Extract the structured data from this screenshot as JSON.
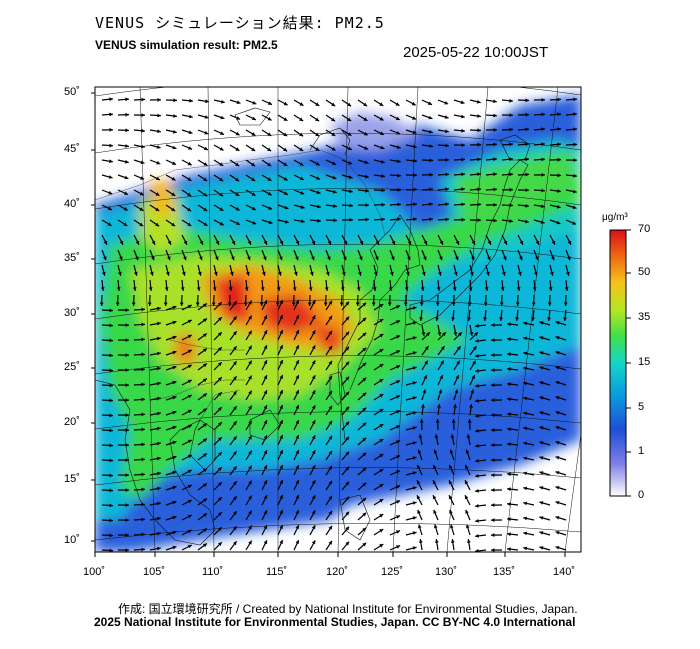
{
  "title_jp": "VENUS シミュレーション結果: PM2.5",
  "title_en": "VENUS simulation result: PM2.5",
  "timestamp": "2025-05-22 10:00JST",
  "lat_labels": [
    "50˚",
    "45˚",
    "40˚",
    "35˚",
    "30˚",
    "25˚",
    "20˚",
    "15˚",
    "10˚"
  ],
  "lon_labels": [
    "100˚",
    "105˚",
    "110˚",
    "115˚",
    "120˚",
    "125˚",
    "130˚",
    "135˚",
    "140˚"
  ],
  "colorbar": {
    "unit": "μg/m³",
    "ticks": [
      "70",
      "50",
      "35",
      "15",
      "5",
      "1",
      "0"
    ],
    "colors": [
      "#ffffff",
      "#8080e6",
      "#1e4fd8",
      "#0a9bdc",
      "#16d6c8",
      "#3fe04a",
      "#b7e524",
      "#f4c41a",
      "#f06a14",
      "#d8101a"
    ]
  },
  "credit": "作成: 国立環境研究所 / Created by National Institute for Environmental Studies, Japan.",
  "copyright": "2025 National Institute for Environmental Studies, Japan. CC BY-NC 4.0 International"
}
